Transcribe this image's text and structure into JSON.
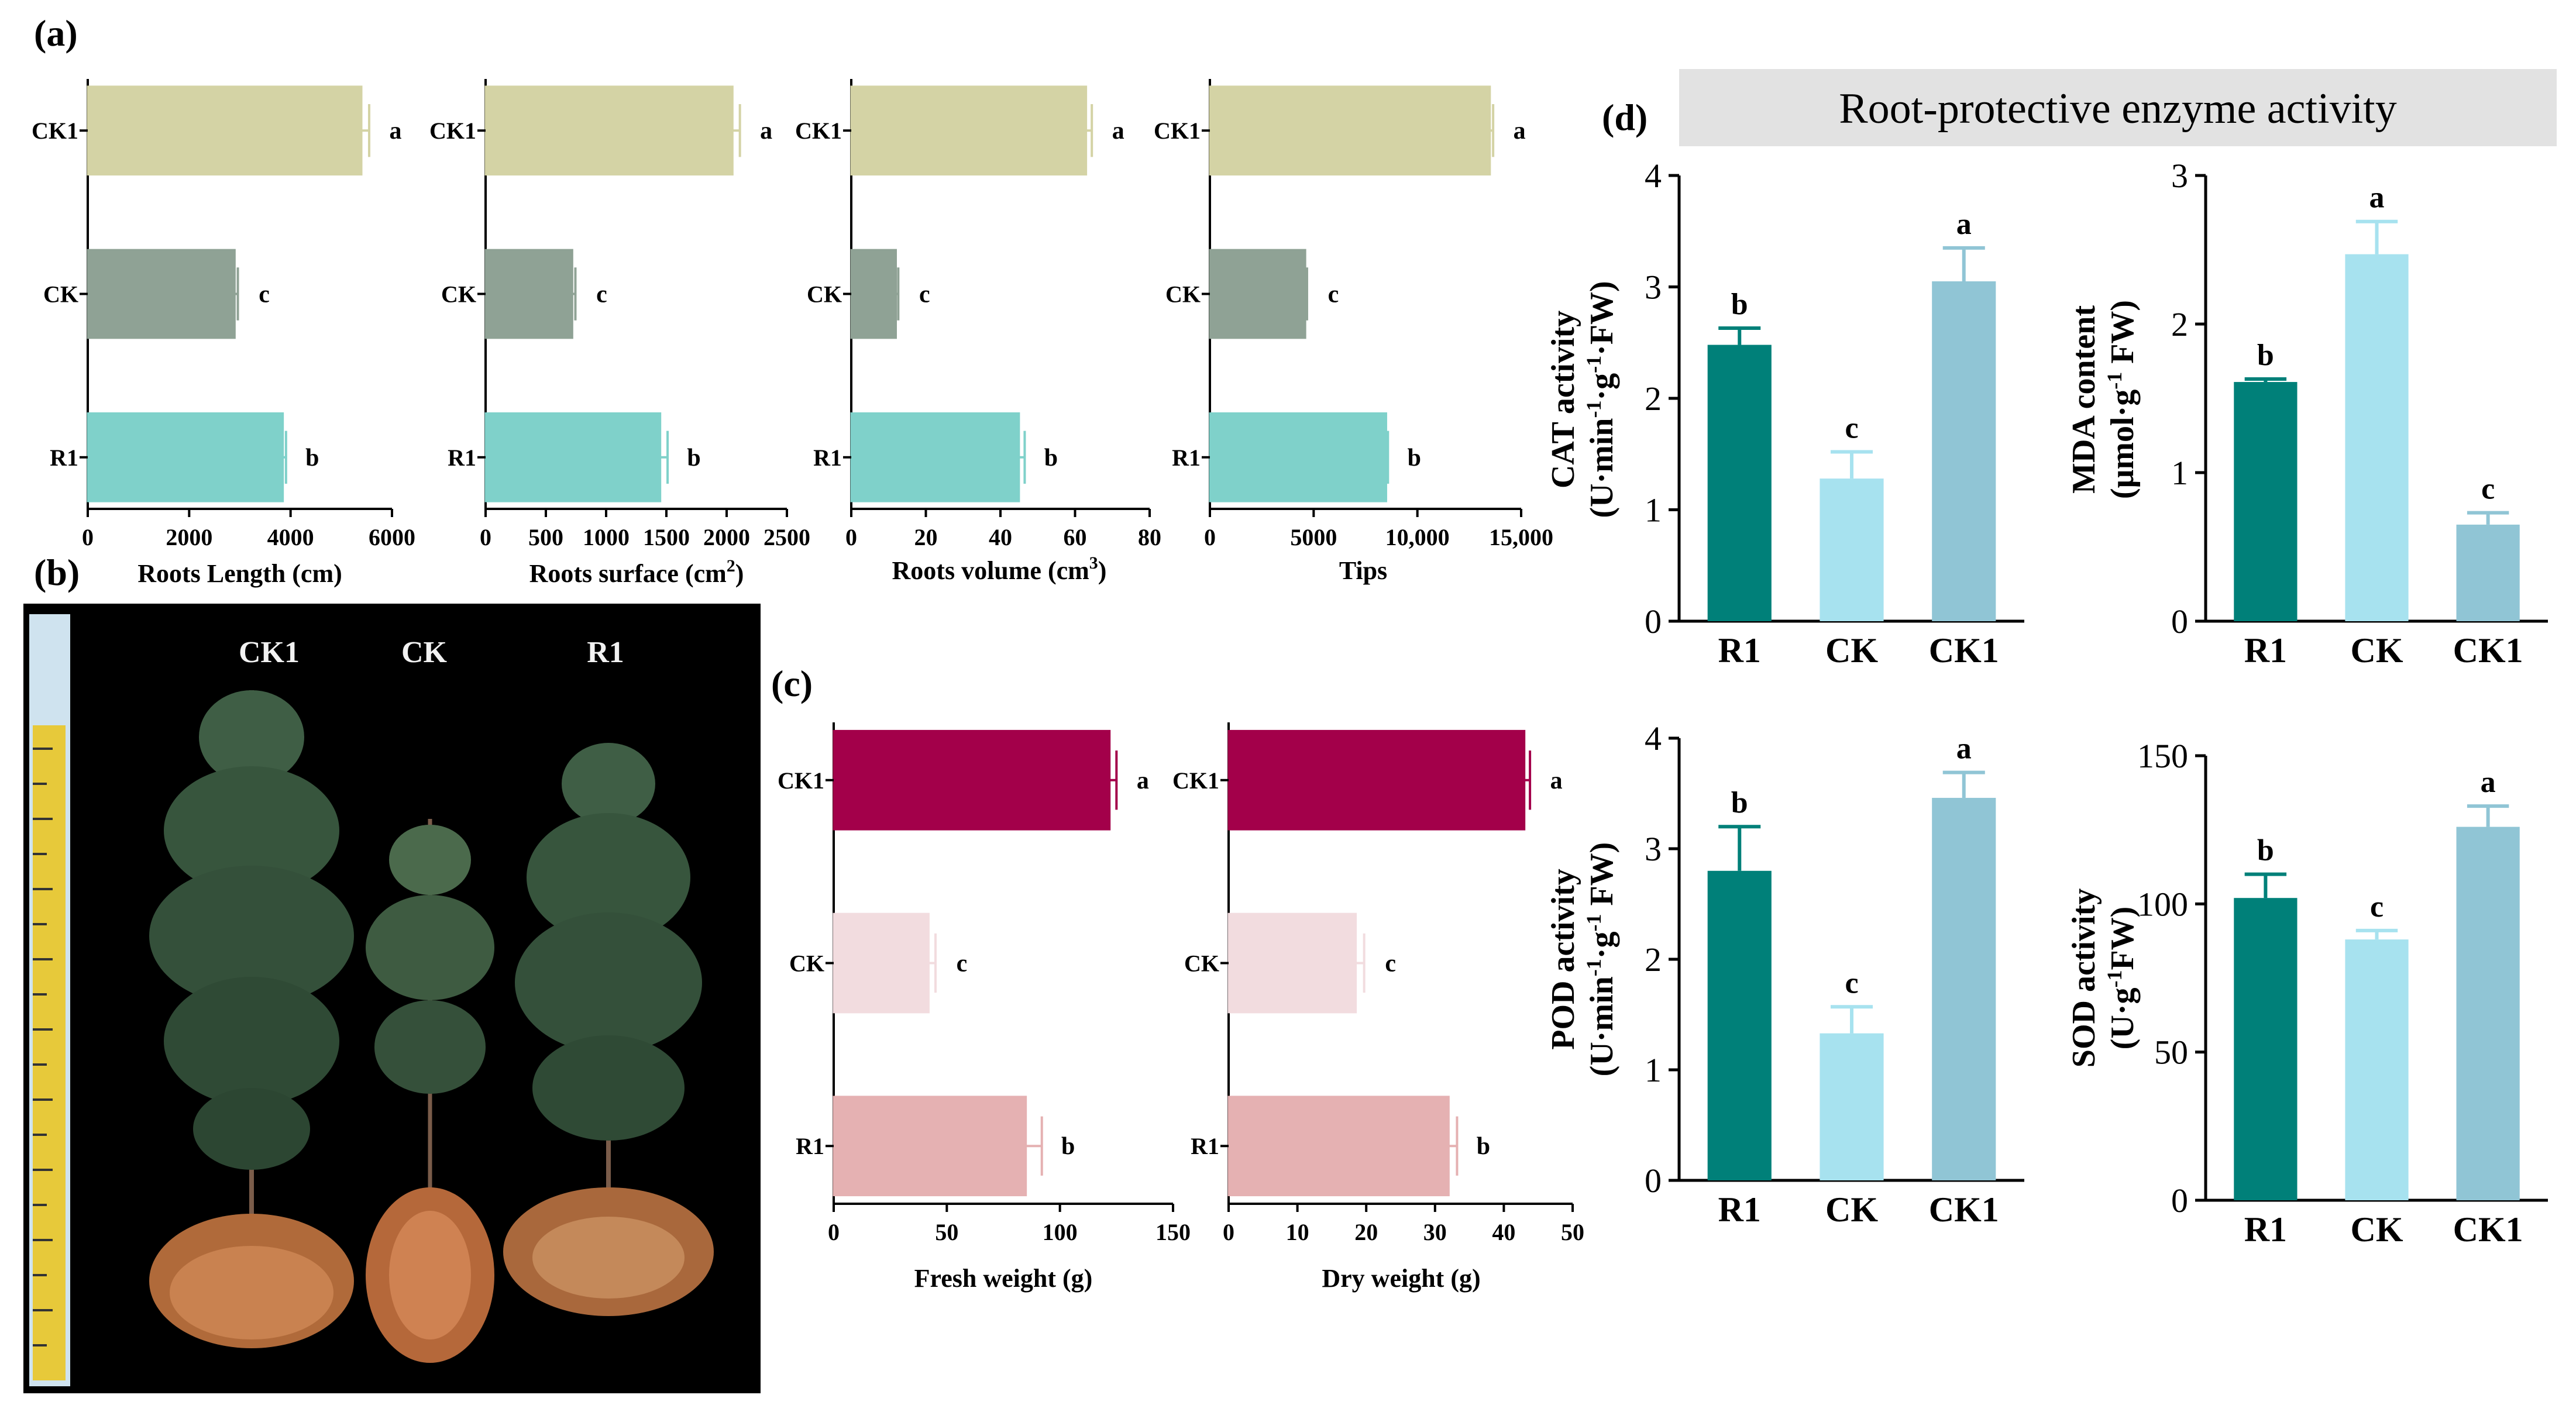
{
  "panels": {
    "a": "(a)",
    "b": "(b)",
    "c": "(c)",
    "d": "(d)"
  },
  "banner_title": "Root-protective enzyme activity",
  "photo": {
    "labels": [
      "CK1",
      "CK",
      "R1"
    ]
  },
  "colors": {
    "CK1_a": "#d4d3a5",
    "CK_a": "#8fa295",
    "R1_a": "#7fd1ca",
    "CK1_c": "#a3004a",
    "CK_c": "#f2dcdf",
    "R1_c": "#e5b1b2",
    "R1_d": "#008079",
    "CK_d": "#a7e2ef",
    "CK1_d": "#90c5d5",
    "banner": "#e2e2e2",
    "photo_bg": "#000000"
  },
  "chart_data": [
    {
      "id": "roots_length",
      "type": "bar",
      "orientation": "horizontal",
      "categories": [
        "CK1",
        "CK",
        "R1"
      ],
      "values": [
        5400,
        2900,
        3850
      ],
      "errors": [
        150,
        60,
        60
      ],
      "letters": [
        "a",
        "c",
        "b"
      ],
      "xlim": [
        0,
        6000
      ],
      "ticks": [
        "0",
        "2000",
        "4000",
        "6000"
      ],
      "tick_values": [
        0,
        2000,
        4000,
        6000
      ],
      "xlabel": "Roots Length (cm)",
      "color_keys": [
        "CK1_a",
        "CK_a",
        "R1_a"
      ]
    },
    {
      "id": "roots_surface",
      "type": "bar",
      "orientation": "horizontal",
      "categories": [
        "CK1",
        "CK",
        "R1"
      ],
      "values": [
        2050,
        720,
        1450
      ],
      "errors": [
        60,
        25,
        60
      ],
      "letters": [
        "a",
        "c",
        "b"
      ],
      "xlim": [
        0,
        2500
      ],
      "ticks": [
        "0",
        "500",
        "1000",
        "1500",
        "2000",
        "2500"
      ],
      "tick_values": [
        0,
        500,
        1000,
        1500,
        2000,
        2500
      ],
      "xlabel_main": "Roots surface (cm",
      "xlabel_sup": "2",
      "xlabel_end": ")",
      "color_keys": [
        "CK1_a",
        "CK_a",
        "R1_a"
      ]
    },
    {
      "id": "roots_volume",
      "type": "bar",
      "orientation": "horizontal",
      "categories": [
        "CK1",
        "CK",
        "R1"
      ],
      "values": [
        63,
        12,
        45
      ],
      "errors": [
        1.5,
        0.6,
        1.5
      ],
      "letters": [
        "a",
        "c",
        "b"
      ],
      "xlim": [
        0,
        80
      ],
      "ticks": [
        "0",
        "20",
        "40",
        "60",
        "80"
      ],
      "tick_values": [
        0,
        20,
        40,
        60,
        80
      ],
      "xlabel_main": "Roots volume (cm",
      "xlabel_sup": "3",
      "xlabel_end": ")",
      "color_keys": [
        "CK1_a",
        "CK_a",
        "R1_a"
      ]
    },
    {
      "id": "tips",
      "type": "bar",
      "orientation": "horizontal",
      "categories": [
        "CK1",
        "CK",
        "R1"
      ],
      "values": [
        13500,
        4600,
        8500
      ],
      "errors": [
        150,
        80,
        80
      ],
      "letters": [
        "a",
        "c",
        "b"
      ],
      "xlim": [
        0,
        15000
      ],
      "ticks": [
        "0",
        "5000",
        "10,000",
        "15,000"
      ],
      "tick_values": [
        0,
        5000,
        10000,
        15000
      ],
      "xlabel": "Tips",
      "color_keys": [
        "CK1_a",
        "CK_a",
        "R1_a"
      ]
    },
    {
      "id": "fresh_weight",
      "type": "bar",
      "orientation": "horizontal",
      "categories": [
        "CK1",
        "CK",
        "R1"
      ],
      "values": [
        122,
        42,
        85
      ],
      "errors": [
        3,
        3,
        7
      ],
      "letters": [
        "a",
        "c",
        "b"
      ],
      "xlim": [
        0,
        150
      ],
      "ticks": [
        "0",
        "50",
        "100",
        "150"
      ],
      "tick_values": [
        0,
        50,
        100,
        150
      ],
      "xlabel": "Fresh weight (g)",
      "color_keys": [
        "CK1_c",
        "CK_c",
        "R1_c"
      ]
    },
    {
      "id": "dry_weight",
      "type": "bar",
      "orientation": "horizontal",
      "categories": [
        "CK1",
        "CK",
        "R1"
      ],
      "values": [
        43,
        18.5,
        32
      ],
      "errors": [
        0.8,
        1.2,
        1.2
      ],
      "letters": [
        "a",
        "c",
        "b"
      ],
      "xlim": [
        0,
        50
      ],
      "ticks": [
        "0",
        "10",
        "20",
        "30",
        "40",
        "50"
      ],
      "tick_values": [
        0,
        10,
        20,
        30,
        40,
        50
      ],
      "xlabel": "Dry weight (g)",
      "color_keys": [
        "CK1_c",
        "CK_c",
        "R1_c"
      ]
    },
    {
      "id": "cat",
      "type": "bar",
      "orientation": "vertical",
      "categories": [
        "R1",
        "CK",
        "CK1"
      ],
      "values": [
        2.48,
        1.28,
        3.05
      ],
      "errors": [
        0.15,
        0.24,
        0.3
      ],
      "letters": [
        "b",
        "c",
        "a"
      ],
      "ylim": [
        0,
        4
      ],
      "ticks": [
        "0",
        "1",
        "2",
        "3",
        "4"
      ],
      "tick_values": [
        0,
        1,
        2,
        3,
        4
      ],
      "ylabel_line1": "CAT activity",
      "ylabel_line2_pre": "(U·min",
      "ylabel_sup1": "-1",
      "ylabel_mid": "·g",
      "ylabel_sup2": "-1",
      "ylabel_end": "·FW)",
      "color_keys": [
        "R1_d",
        "CK_d",
        "CK1_d"
      ]
    },
    {
      "id": "mda",
      "type": "bar",
      "orientation": "vertical",
      "categories": [
        "R1",
        "CK",
        "CK1"
      ],
      "values": [
        1.61,
        2.47,
        0.65
      ],
      "errors": [
        0.02,
        0.22,
        0.08
      ],
      "letters": [
        "b",
        "a",
        "c"
      ],
      "ylim": [
        0,
        3
      ],
      "ticks": [
        "0",
        "1",
        "2",
        "3"
      ],
      "tick_values": [
        0,
        1,
        2,
        3
      ],
      "ylabel_line1": "MDA content",
      "ylabel_line2_pre": "(μmol·g",
      "ylabel_sup1": "-1",
      "ylabel_end": " FW)",
      "color_keys": [
        "R1_d",
        "CK_d",
        "CK1_d"
      ]
    },
    {
      "id": "pod",
      "type": "bar",
      "orientation": "vertical",
      "categories": [
        "R1",
        "CK",
        "CK1"
      ],
      "values": [
        2.8,
        1.33,
        3.46
      ],
      "errors": [
        0.4,
        0.24,
        0.23
      ],
      "letters": [
        "b",
        "c",
        "a"
      ],
      "ylim": [
        0,
        4
      ],
      "ticks": [
        "0",
        "1",
        "2",
        "3",
        "4"
      ],
      "tick_values": [
        0,
        1,
        2,
        3,
        4
      ],
      "ylabel_line1": "POD activity",
      "ylabel_line2_pre": "(U·min",
      "ylabel_sup1": "-1",
      "ylabel_mid": "·g",
      "ylabel_sup2": "-1",
      "ylabel_end": " FW)",
      "color_keys": [
        "R1_d",
        "CK_d",
        "CK1_d"
      ]
    },
    {
      "id": "sod",
      "type": "bar",
      "orientation": "vertical",
      "categories": [
        "R1",
        "CK",
        "CK1"
      ],
      "values": [
        102,
        88,
        126
      ],
      "errors": [
        8,
        3,
        7
      ],
      "letters": [
        "b",
        "c",
        "a"
      ],
      "ylim": [
        0,
        150
      ],
      "ticks": [
        "0",
        "50",
        "100",
        "150"
      ],
      "tick_values": [
        0,
        50,
        100,
        150
      ],
      "ylabel_line1": "SOD activity",
      "ylabel_line2_pre": "(U·g",
      "ylabel_sup1": "-1",
      "ylabel_end": "FW)",
      "color_keys": [
        "R1_d",
        "CK_d",
        "CK1_d"
      ]
    }
  ]
}
